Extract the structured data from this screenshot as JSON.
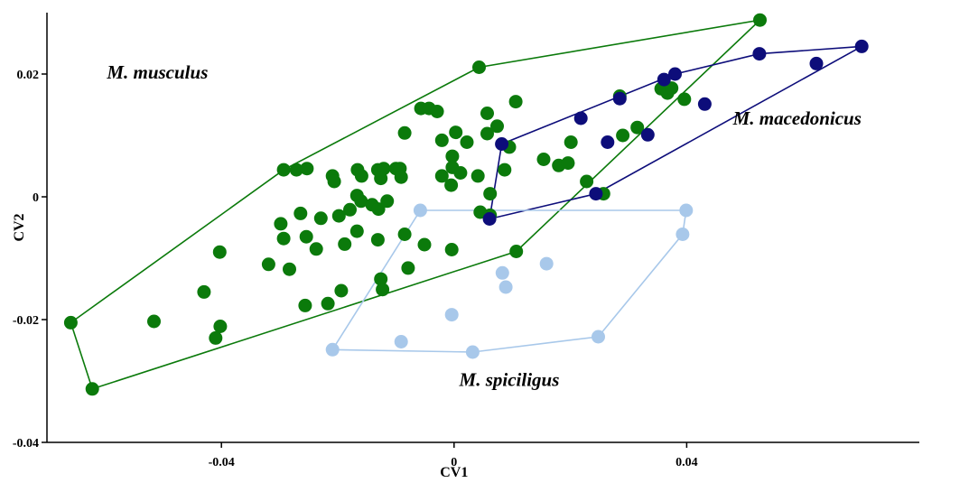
{
  "chart_data": {
    "type": "scatter",
    "title": "",
    "xlabel": "CV1",
    "ylabel": "CV2",
    "xlim": [
      -0.07,
      0.08
    ],
    "ylim": [
      -0.04,
      0.03
    ],
    "xticks": [
      {
        "value": -0.04,
        "label": "-0.04"
      },
      {
        "value": 0,
        "label": "0"
      },
      {
        "value": 0.04,
        "label": "0.04"
      }
    ],
    "yticks": [
      {
        "value": -0.04,
        "label": "-0.04"
      },
      {
        "value": -0.02,
        "label": "-0.02"
      },
      {
        "value": 0,
        "label": "0"
      },
      {
        "value": 0.02,
        "label": "0.02"
      }
    ],
    "grid": false,
    "legend": "none",
    "series": [
      {
        "name": "M. musculus",
        "color": "#0b7a0b",
        "hull": [
          [
            -0.0659,
            -0.0205
          ],
          [
            -0.0622,
            -0.0313
          ],
          [
            0.0107,
            -0.0089
          ],
          [
            0.0526,
            0.0288
          ],
          [
            0.0043,
            0.0211
          ],
          [
            -0.0293,
            0.0044
          ]
        ],
        "points": [
          [
            0.0526,
            0.0288
          ],
          [
            0.0043,
            0.0211
          ],
          [
            -0.0293,
            0.0044
          ],
          [
            -0.0271,
            0.0044
          ],
          [
            -0.0253,
            0.0046
          ],
          [
            -0.0209,
            0.0034
          ],
          [
            -0.0206,
            0.0025
          ],
          [
            -0.0166,
            0.0044
          ],
          [
            -0.0159,
            0.0034
          ],
          [
            -0.0131,
            0.0044
          ],
          [
            -0.0121,
            0.0046
          ],
          [
            -0.0126,
            0.003
          ],
          [
            -0.01,
            0.0046
          ],
          [
            -0.0093,
            0.0046
          ],
          [
            -0.0091,
            0.0032
          ],
          [
            -0.0085,
            0.0104
          ],
          [
            -0.0057,
            0.0144
          ],
          [
            -0.0043,
            0.0144
          ],
          [
            -0.0029,
            0.0139
          ],
          [
            -0.0021,
            0.0092
          ],
          [
            -0.0003,
            0.0066
          ],
          [
            -0.0003,
            0.0048
          ],
          [
            -0.0021,
            0.0034
          ],
          [
            -0.0005,
            0.0019
          ],
          [
            0.0011,
            0.0039
          ],
          [
            0.0022,
            0.0089
          ],
          [
            0.0003,
            0.0105
          ],
          [
            0.0057,
            0.0136
          ],
          [
            0.0074,
            0.0115
          ],
          [
            0.0057,
            0.0103
          ],
          [
            0.0106,
            0.0155
          ],
          [
            0.0095,
            0.0081
          ],
          [
            0.0087,
            0.0044
          ],
          [
            0.0041,
            0.0034
          ],
          [
            0.0062,
            0.0005
          ],
          [
            0.0154,
            0.0061
          ],
          [
            0.018,
            0.0051
          ],
          [
            0.0196,
            0.0055
          ],
          [
            0.0228,
            0.0025
          ],
          [
            0.0201,
            0.0089
          ],
          [
            0.029,
            0.01
          ],
          [
            0.0285,
            0.0164
          ],
          [
            0.0315,
            0.0113
          ],
          [
            0.0356,
            0.0176
          ],
          [
            0.0367,
            0.0169
          ],
          [
            0.0374,
            0.0177
          ],
          [
            0.0396,
            0.0159
          ],
          [
            0.0257,
            0.0005
          ],
          [
            -0.0167,
            0.0002
          ],
          [
            -0.016,
            -0.0007
          ],
          [
            -0.0141,
            -0.0013
          ],
          [
            -0.013,
            -0.002
          ],
          [
            -0.0115,
            -0.0007
          ],
          [
            -0.0179,
            -0.0021
          ],
          [
            -0.0198,
            -0.0031
          ],
          [
            -0.0229,
            -0.0035
          ],
          [
            -0.0264,
            -0.0027
          ],
          [
            -0.0298,
            -0.0044
          ],
          [
            -0.0293,
            -0.0068
          ],
          [
            -0.0254,
            -0.0065
          ],
          [
            -0.0237,
            -0.0085
          ],
          [
            -0.0167,
            -0.0056
          ],
          [
            -0.0188,
            -0.0077
          ],
          [
            -0.0131,
            -0.007
          ],
          [
            -0.0085,
            -0.0061
          ],
          [
            -0.0051,
            -0.0078
          ],
          [
            -0.0079,
            -0.0116
          ],
          [
            -0.0004,
            -0.0086
          ],
          [
            0.0045,
            -0.0025
          ],
          [
            0.0062,
            -0.003
          ],
          [
            0.0107,
            -0.0089
          ],
          [
            -0.0319,
            -0.011
          ],
          [
            -0.0283,
            -0.0118
          ],
          [
            -0.0403,
            -0.009
          ],
          [
            -0.043,
            -0.0155
          ],
          [
            -0.0402,
            -0.0211
          ],
          [
            -0.041,
            -0.023
          ],
          [
            -0.0256,
            -0.0177
          ],
          [
            -0.0217,
            -0.0174
          ],
          [
            -0.0194,
            -0.0153
          ],
          [
            -0.0126,
            -0.0134
          ],
          [
            -0.0123,
            -0.0151
          ],
          [
            -0.0516,
            -0.0203
          ],
          [
            -0.0659,
            -0.0205
          ],
          [
            -0.0622,
            -0.0313
          ]
        ]
      },
      {
        "name": "M. macedonicus",
        "color": "#0d0d7a",
        "hull": [
          [
            0.0061,
            -0.0036
          ],
          [
            0.0082,
            0.0086
          ],
          [
            0.038,
            0.02
          ],
          [
            0.0525,
            0.0233
          ],
          [
            0.0701,
            0.0245
          ],
          [
            0.0244,
            0.0005
          ]
        ],
        "points": [
          [
            0.0082,
            0.0086
          ],
          [
            0.0061,
            -0.0036
          ],
          [
            0.0218,
            0.0128
          ],
          [
            0.0285,
            0.016
          ],
          [
            0.0361,
            0.0191
          ],
          [
            0.038,
            0.02
          ],
          [
            0.0525,
            0.0233
          ],
          [
            0.0701,
            0.0245
          ],
          [
            0.0623,
            0.0217
          ],
          [
            0.0431,
            0.0151
          ],
          [
            0.0264,
            0.0089
          ],
          [
            0.0333,
            0.0101
          ],
          [
            0.0244,
            0.0005
          ]
        ]
      },
      {
        "name": "M. spiciligus",
        "color": "#a8c8ea",
        "hull": [
          [
            -0.0058,
            -0.0022
          ],
          [
            0.0399,
            -0.0022
          ],
          [
            0.0393,
            -0.0061
          ],
          [
            0.0248,
            -0.0228
          ],
          [
            0.0032,
            -0.0253
          ],
          [
            -0.0209,
            -0.0249
          ]
        ],
        "points": [
          [
            -0.0058,
            -0.0022
          ],
          [
            0.0399,
            -0.0022
          ],
          [
            0.0393,
            -0.0061
          ],
          [
            0.0159,
            -0.0109
          ],
          [
            0.0083,
            -0.0124
          ],
          [
            0.0089,
            -0.0147
          ],
          [
            -0.0004,
            -0.0192
          ],
          [
            -0.0091,
            -0.0236
          ],
          [
            0.0248,
            -0.0228
          ],
          [
            0.0032,
            -0.0253
          ],
          [
            -0.0209,
            -0.0249
          ]
        ]
      }
    ],
    "annotations": [
      {
        "text": "M. musculus",
        "x": -0.051,
        "y": 0.0193
      },
      {
        "text": "M. macedonicus",
        "x": 0.059,
        "y": 0.0118
      },
      {
        "text": "M. spiciligus",
        "x": 0.0095,
        "y": -0.0308
      }
    ]
  }
}
